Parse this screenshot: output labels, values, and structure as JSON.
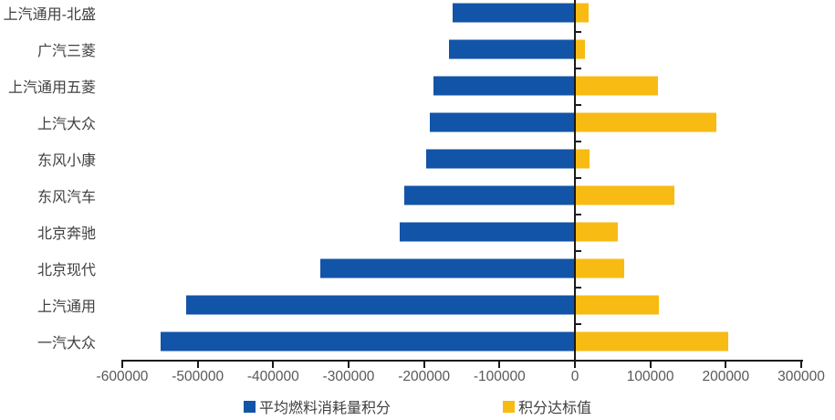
{
  "chart_data": {
    "type": "bar",
    "orientation": "horizontal",
    "title": "",
    "categories": [
      "上汽通用-北盛",
      "广汽三菱",
      "上汽通用五菱",
      "上汽大众",
      "东风小康",
      "东风汽车",
      "北京奔驰",
      "北京现代",
      "上汽通用",
      "一汽大众"
    ],
    "series": [
      {
        "name": "平均燃料消耗量积分",
        "color": "#1254A8",
        "values": [
          -162000,
          -167000,
          -187000,
          -192000,
          -197000,
          -226000,
          -232000,
          -337000,
          -515000,
          -549000
        ]
      },
      {
        "name": "积分达标值",
        "color": "#F8BB13",
        "values": [
          18000,
          13000,
          110000,
          187000,
          19000,
          132000,
          57000,
          65000,
          111000,
          203000
        ]
      }
    ],
    "x_axis": {
      "min": -600000,
      "max": 300000,
      "tick_step": 100000,
      "tick_values": [
        -600000,
        -500000,
        -400000,
        -300000,
        -200000,
        -100000,
        0,
        100000,
        200000,
        300000
      ],
      "tick_labels": [
        "-600000",
        "-500000",
        "-400000",
        "-300000",
        "-200000",
        "-100000",
        "0",
        "100000",
        "200000",
        "300000"
      ]
    },
    "legend_position": "bottom",
    "grid": false,
    "colors": {
      "axis_line": "#1a1a1a",
      "tick_label": "#595959",
      "category_label": "#404040",
      "background": "#ffffff"
    }
  }
}
